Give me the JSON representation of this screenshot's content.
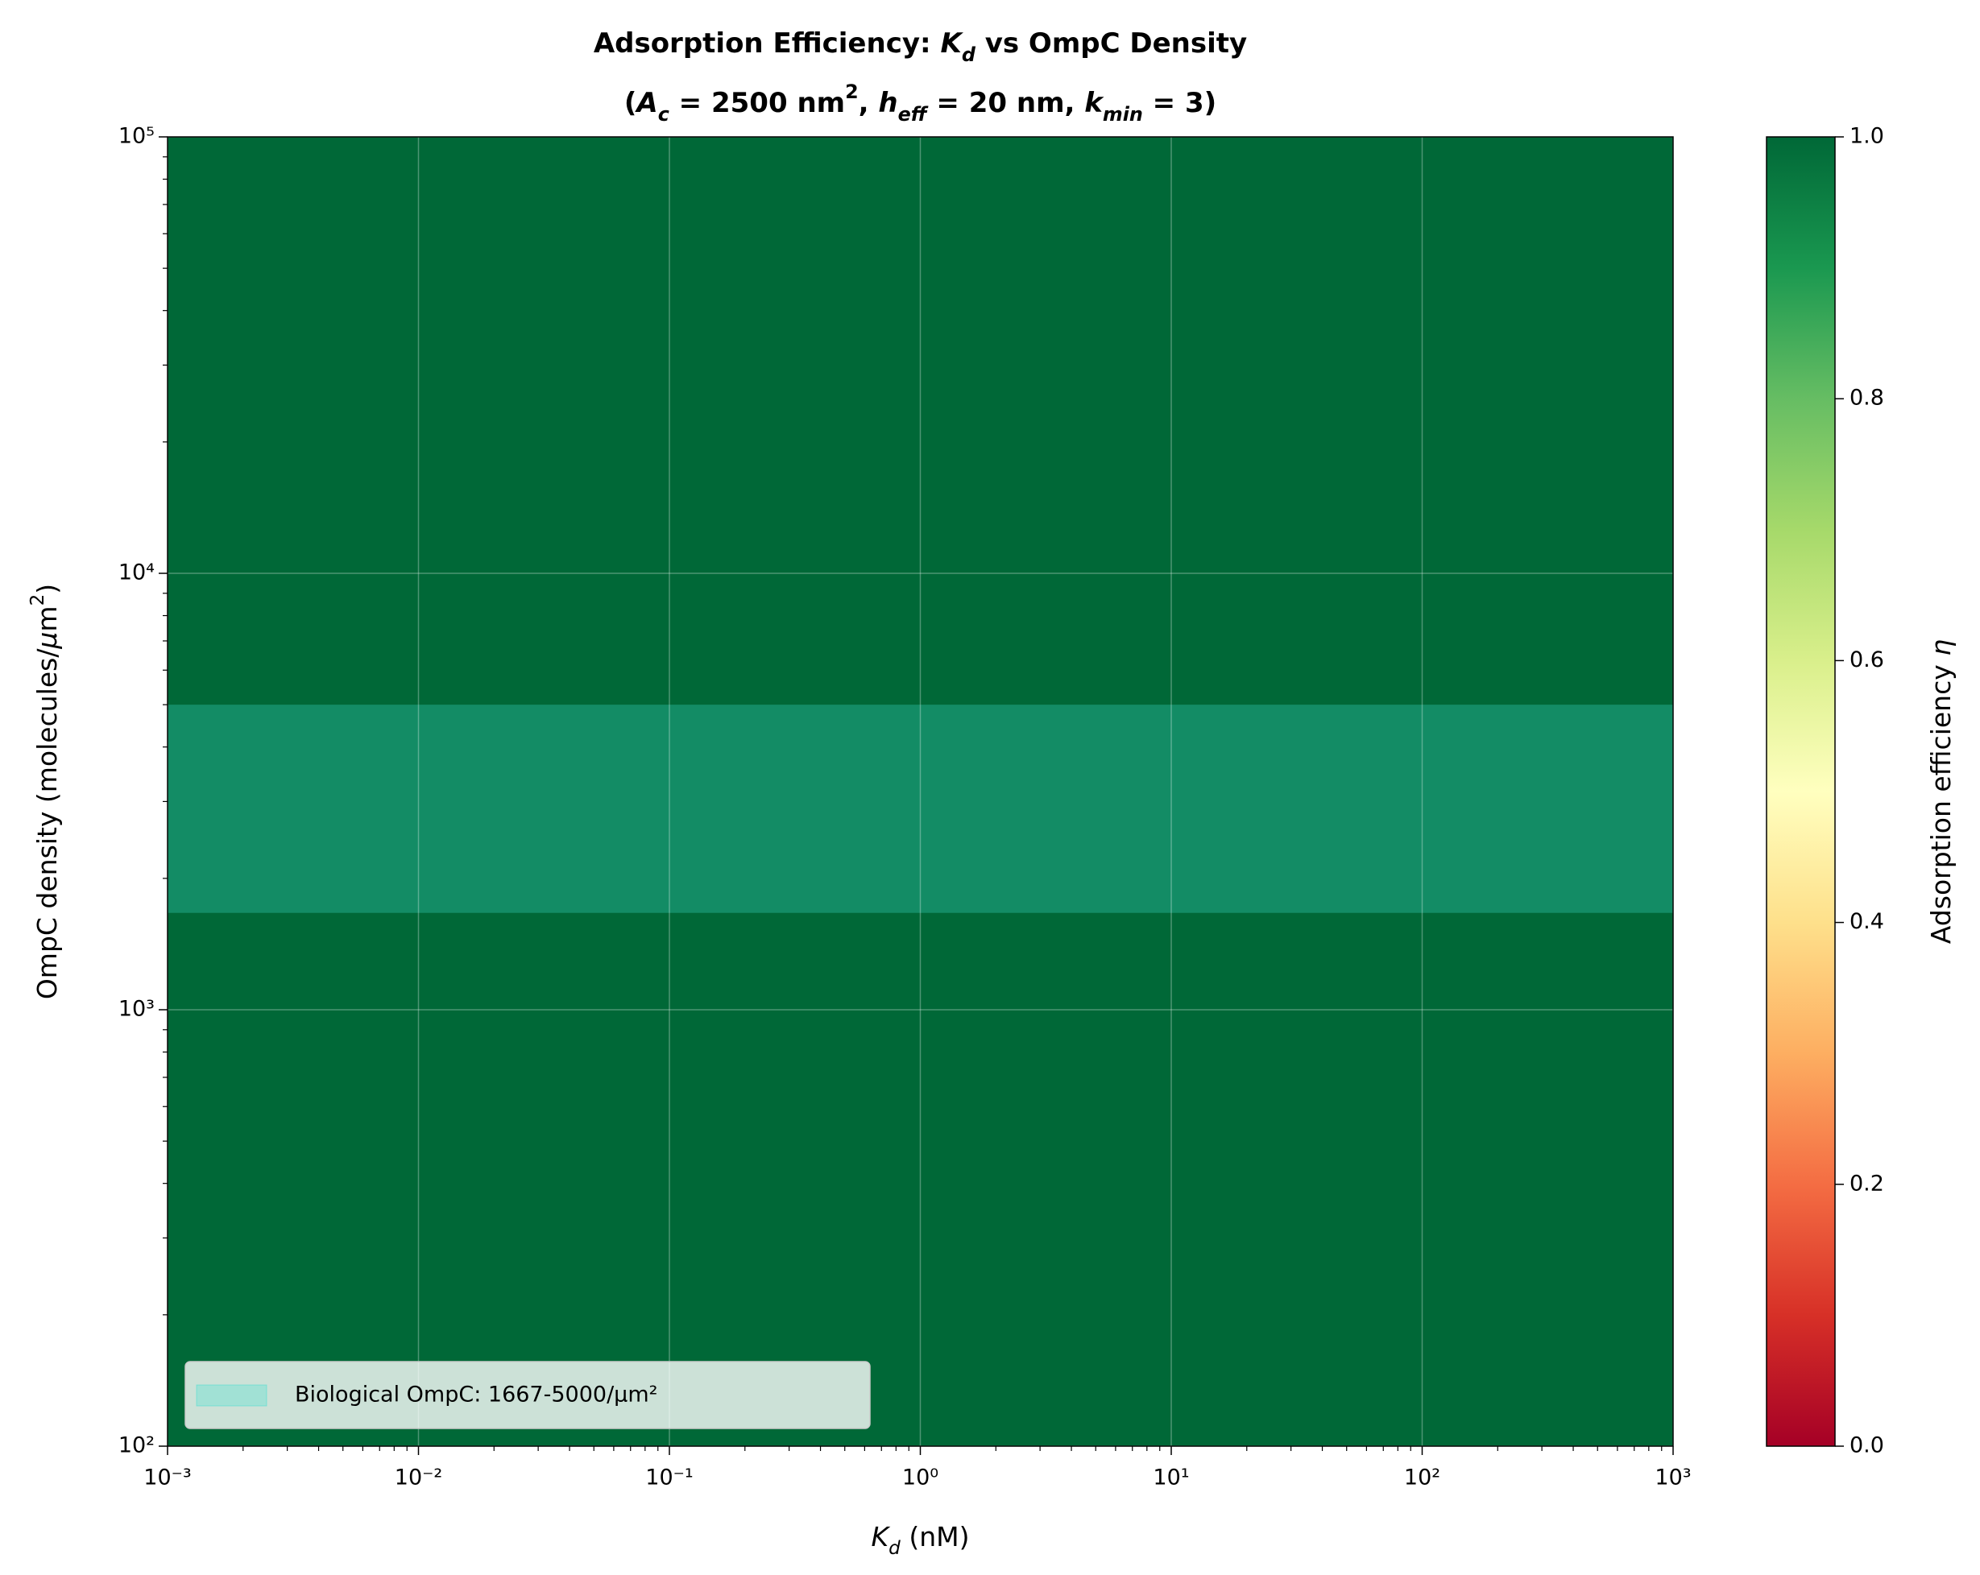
{
  "chart_data": {
    "type": "heatmap",
    "title": [
      [
        {
          "text": "Adsorption Efficiency: ",
          "style": ""
        },
        {
          "text": "K",
          "style": "i"
        },
        {
          "text": "d",
          "style": "sub"
        },
        {
          "text": " vs OmpC Density",
          "style": ""
        }
      ],
      [
        {
          "text": "(",
          "style": ""
        },
        {
          "text": "A",
          "style": "i"
        },
        {
          "text": "c",
          "style": "sub"
        },
        {
          "text": " = 2500 nm",
          "style": ""
        },
        {
          "text": "2",
          "style": "sup"
        },
        {
          "text": ", ",
          "style": ""
        },
        {
          "text": "h",
          "style": "i"
        },
        {
          "text": "eff",
          "style": "sub"
        },
        {
          "text": " = 20 nm, ",
          "style": ""
        },
        {
          "text": "k",
          "style": "i"
        },
        {
          "text": "min",
          "style": "sub"
        },
        {
          "text": " = 3)",
          "style": ""
        }
      ]
    ],
    "xlabel": [
      {
        "text": "K",
        "style": "i"
      },
      {
        "text": "d",
        "style": "sub"
      },
      {
        "text": " (nM)",
        "style": ""
      }
    ],
    "ylabel": [
      {
        "text": "OmpC density (molecules/",
        "style": ""
      },
      {
        "text": "μ",
        "style": "i"
      },
      {
        "text": "m",
        "style": ""
      },
      {
        "text": "2",
        "style": "sup"
      },
      {
        "text": ")",
        "style": ""
      }
    ],
    "xscale": "log",
    "yscale": "log",
    "xlim": [
      0.001,
      1000
    ],
    "ylim": [
      100,
      100000
    ],
    "xticks": [
      {
        "value": 0.001,
        "label": "10⁻³"
      },
      {
        "value": 0.01,
        "label": "10⁻²"
      },
      {
        "value": 0.1,
        "label": "10⁻¹"
      },
      {
        "value": 1,
        "label": "10⁰"
      },
      {
        "value": 10,
        "label": "10¹"
      },
      {
        "value": 100,
        "label": "10²"
      },
      {
        "value": 1000,
        "label": "10³"
      }
    ],
    "yticks": [
      {
        "value": 100,
        "label": "10²"
      },
      {
        "value": 1000,
        "label": "10³"
      },
      {
        "value": 10000,
        "label": "10⁴"
      },
      {
        "value": 100000,
        "label": "10⁵"
      }
    ],
    "values": [
      [
        1.0
      ]
    ],
    "grid": true,
    "span": {
      "name": "Biological OmpC: 1667-5000/μm²",
      "ymin": 1667,
      "ymax": 5000,
      "color": "#40e0d0",
      "alpha": 0.3
    },
    "legend": "lower left",
    "colorbar": {
      "label": [
        {
          "text": "Adsorption efficiency ",
          "style": ""
        },
        {
          "text": "η",
          "style": "i"
        }
      ],
      "lim": [
        0,
        1
      ],
      "ticks": [
        {
          "value": 0,
          "label": "0.0"
        },
        0.2,
        0.4,
        0.6,
        0.8,
        {
          "value": 1,
          "label": "1.0"
        }
      ],
      "colors": [
        "#a50026",
        "#d73027",
        "#f46d43",
        "#fdae61",
        "#fee08b",
        "#ffffbf",
        "#d9ef8b",
        "#a6d96a",
        "#66bd63",
        "#1a9850",
        "#006837"
      ]
    }
  }
}
